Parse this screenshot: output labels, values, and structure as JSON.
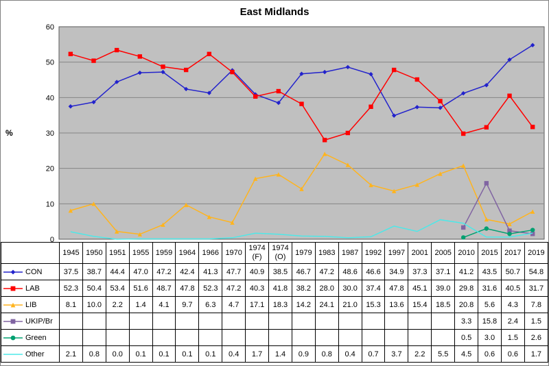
{
  "title": "East Midlands",
  "ylabel": "%",
  "colors": {
    "plot_bg": "#c0c0c0",
    "grid": "#858585",
    "plot_border": "#5a5a5a",
    "text": "#000000"
  },
  "chart_data": {
    "type": "line",
    "title": "East Midlands",
    "ylabel": "%",
    "ylim": [
      0,
      60
    ],
    "ytick_interval": 10,
    "grid": true,
    "legend_position": "table-left-column",
    "value_decimals": 1,
    "categories": [
      "1945",
      "1950",
      "1951",
      "1955",
      "1959",
      "1964",
      "1966",
      "1970",
      "1974\n(F)",
      "1974\n(O)",
      "1979",
      "1983",
      "1987",
      "1992",
      "1997",
      "2001",
      "2005",
      "2010",
      "2015",
      "2017",
      "2019"
    ],
    "series": [
      {
        "name": "CON",
        "color": "#2222cc",
        "marker": "diamond",
        "values": [
          37.5,
          38.7,
          44.4,
          47.0,
          47.2,
          42.4,
          41.3,
          47.7,
          40.9,
          38.5,
          46.7,
          47.2,
          48.6,
          46.6,
          34.9,
          37.3,
          37.1,
          41.2,
          43.5,
          50.7,
          54.8
        ]
      },
      {
        "name": "LAB",
        "color": "#ff0000",
        "marker": "square",
        "values": [
          52.3,
          50.4,
          53.4,
          51.6,
          48.7,
          47.8,
          52.3,
          47.2,
          40.3,
          41.8,
          38.2,
          28.0,
          30.0,
          37.4,
          47.8,
          45.1,
          39.0,
          29.8,
          31.6,
          40.5,
          31.7
        ]
      },
      {
        "name": "LIB",
        "color": "#ffb41e",
        "marker": "triangle",
        "values": [
          8.1,
          10.0,
          2.2,
          1.4,
          4.1,
          9.7,
          6.3,
          4.7,
          17.1,
          18.3,
          14.2,
          24.1,
          21.0,
          15.3,
          13.6,
          15.4,
          18.5,
          20.8,
          5.6,
          4.3,
          7.8
        ]
      },
      {
        "name": "UKIP/Br",
        "color": "#8064a2",
        "marker": "square",
        "values": [
          null,
          null,
          null,
          null,
          null,
          null,
          null,
          null,
          null,
          null,
          null,
          null,
          null,
          null,
          null,
          null,
          null,
          3.3,
          15.8,
          2.4,
          1.5
        ]
      },
      {
        "name": "Green",
        "color": "#00a070",
        "marker": "circle",
        "values": [
          null,
          null,
          null,
          null,
          null,
          null,
          null,
          null,
          null,
          null,
          null,
          null,
          null,
          null,
          null,
          null,
          null,
          0.5,
          3.0,
          1.5,
          2.6
        ]
      },
      {
        "name": "Other",
        "color": "#4de8e8",
        "marker": "none",
        "values": [
          2.1,
          0.8,
          0.0,
          0.1,
          0.1,
          0.1,
          0.1,
          0.4,
          1.7,
          1.4,
          0.9,
          0.8,
          0.4,
          0.7,
          3.7,
          2.2,
          5.5,
          4.5,
          0.6,
          0.6,
          1.7
        ]
      }
    ]
  }
}
